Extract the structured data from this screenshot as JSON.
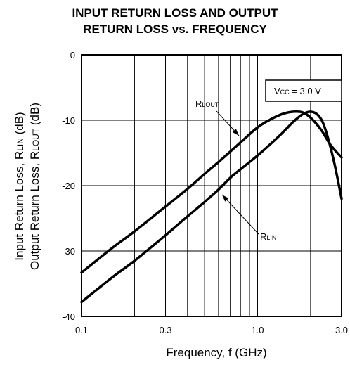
{
  "chart_data": {
    "type": "line",
    "title_line1": "INPUT RETURN LOSS AND OUTPUT",
    "title_line2": "RETURN LOSS  vs. FREQUENCY",
    "xlabel": "Frequency, f (GHz)",
    "ylabel_line1": {
      "pre": "Input Return Loss, R",
      "sub": "LIN",
      "post": " (dB)"
    },
    "ylabel_line2": {
      "pre": "Output Return Loss, R",
      "sub": "LOUT",
      "post": " (dB)"
    },
    "x_scale": "log",
    "xlim": [
      0.1,
      3.0
    ],
    "ylim": [
      -40,
      0
    ],
    "x_ticks": [
      0.1,
      0.3,
      1.0,
      3.0
    ],
    "x_tick_labels": [
      "0.1",
      "0.3",
      "1.0",
      "3.0"
    ],
    "x_gridlines": [
      0.1,
      0.2,
      0.3,
      0.4,
      0.5,
      0.6,
      0.7,
      0.8,
      0.9,
      1.0,
      2.0,
      3.0
    ],
    "y_ticks": [
      0,
      -10,
      -20,
      -30,
      -40
    ],
    "y_tick_labels": [
      "0",
      "-10",
      "-20",
      "-30",
      "-40"
    ],
    "grid": true,
    "condition": {
      "pre": "V",
      "sub": "CC",
      "post": " = 3.0 V"
    },
    "series": [
      {
        "name": "RLOUT",
        "label": {
          "pre": "R",
          "sub": "LOUT"
        },
        "x": [
          0.1,
          0.15,
          0.2,
          0.3,
          0.4,
          0.5,
          0.6,
          0.7,
          0.8,
          1.0,
          1.2,
          1.4,
          1.6,
          1.8,
          2.0,
          2.3,
          2.6,
          3.0
        ],
        "y": [
          -33.3,
          -29.5,
          -27.0,
          -23.2,
          -20.5,
          -18.2,
          -16.4,
          -14.8,
          -13.4,
          -11.1,
          -9.8,
          -9.0,
          -8.7,
          -8.8,
          -9.6,
          -11.5,
          -13.8,
          -15.7
        ]
      },
      {
        "name": "RLIN",
        "label": {
          "pre": "R",
          "sub": "LIN"
        },
        "x": [
          0.1,
          0.15,
          0.2,
          0.3,
          0.4,
          0.5,
          0.6,
          0.7,
          0.8,
          1.0,
          1.2,
          1.4,
          1.6,
          1.8,
          2.0,
          2.2,
          2.4,
          2.7,
          3.0
        ],
        "y": [
          -37.8,
          -34.0,
          -31.5,
          -27.6,
          -24.7,
          -22.5,
          -20.6,
          -18.8,
          -17.5,
          -15.4,
          -13.5,
          -11.8,
          -10.2,
          -9.1,
          -8.7,
          -9.2,
          -11.0,
          -16.0,
          -22.0
        ]
      }
    ]
  }
}
